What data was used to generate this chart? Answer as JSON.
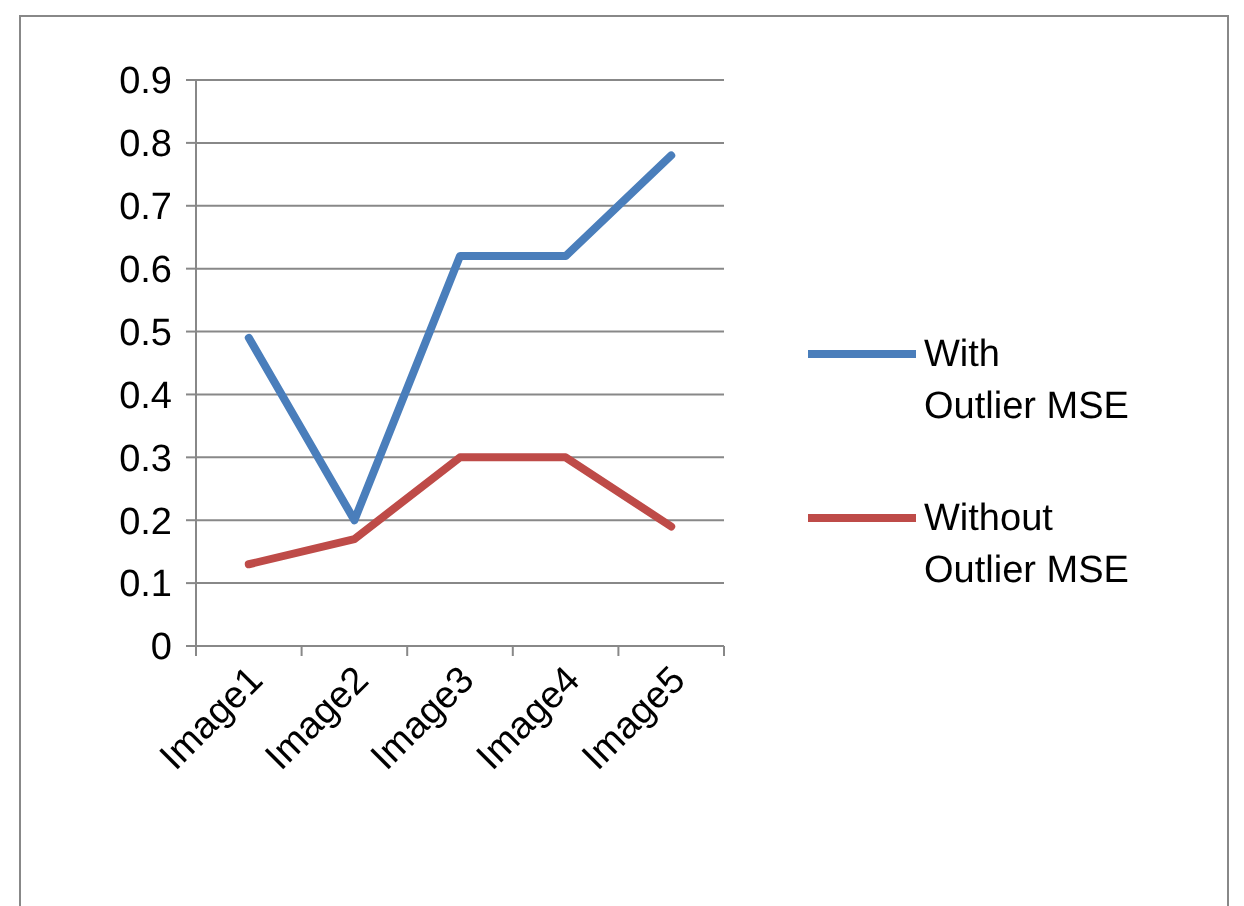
{
  "chart_data": {
    "type": "line",
    "categories": [
      "Image1",
      "Image2",
      "Image3",
      "Image4",
      "Image5"
    ],
    "series": [
      {
        "name": "With Outlier MSE",
        "color": "#4a7ebb",
        "values": [
          0.49,
          0.2,
          0.62,
          0.62,
          0.78
        ]
      },
      {
        "name": "Without Outlier MSE",
        "color": "#be4b48",
        "values": [
          0.13,
          0.17,
          0.3,
          0.3,
          0.19
        ]
      }
    ],
    "ylim": [
      0,
      0.9
    ],
    "yticks": [
      0,
      0.1,
      0.2,
      0.3,
      0.4,
      0.5,
      0.6,
      0.7,
      0.8,
      0.9
    ],
    "grid": "y",
    "legend": "right",
    "line_style": "solid",
    "marker": "none"
  }
}
